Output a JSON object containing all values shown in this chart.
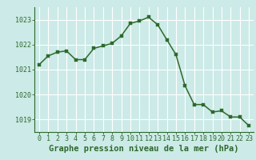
{
  "x": [
    0,
    1,
    2,
    3,
    4,
    5,
    6,
    7,
    8,
    9,
    10,
    11,
    12,
    13,
    14,
    15,
    16,
    17,
    18,
    19,
    20,
    21,
    22,
    23
  ],
  "y": [
    1021.2,
    1021.55,
    1021.7,
    1021.75,
    1021.4,
    1021.4,
    1021.85,
    1021.95,
    1022.05,
    1022.35,
    1022.85,
    1022.95,
    1023.1,
    1022.8,
    1022.2,
    1021.6,
    1020.35,
    1019.6,
    1019.6,
    1019.3,
    1019.35,
    1019.1,
    1019.1,
    1018.75
  ],
  "line_color": "#2d6a2d",
  "marker_color": "#2d6a2d",
  "bg_color": "#cceae7",
  "grid_color_major": "#ffffff",
  "grid_color_minor": "#e8f8f5",
  "xlabel": "Graphe pression niveau de la mer (hPa)",
  "xlabel_color": "#2d6a2d",
  "tick_color": "#2d6a2d",
  "ylim": [
    1018.5,
    1023.5
  ],
  "yticks": [
    1019,
    1020,
    1021,
    1022,
    1023
  ],
  "xticks": [
    0,
    1,
    2,
    3,
    4,
    5,
    6,
    7,
    8,
    9,
    10,
    11,
    12,
    13,
    14,
    15,
    16,
    17,
    18,
    19,
    20,
    21,
    22,
    23
  ],
  "xlabel_fontsize": 7.5,
  "tick_fontsize": 6.0,
  "marker_size": 2.8,
  "line_width": 1.1
}
